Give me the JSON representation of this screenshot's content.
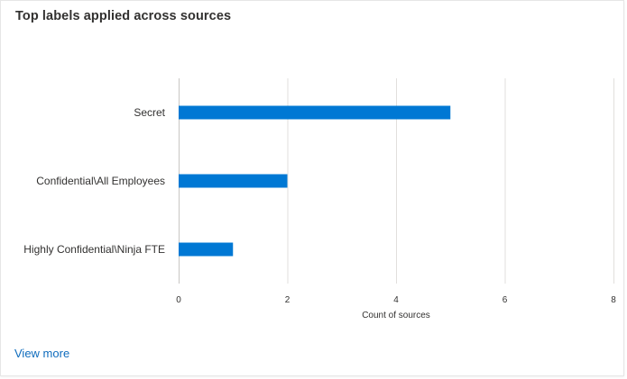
{
  "card": {
    "title": "Top labels applied across sources",
    "view_more_label": "View more"
  },
  "colors": {
    "bar": "#0078d4",
    "grid": "#e1dfdd",
    "axis": "#c8c6c4",
    "text": "#323130",
    "link": "#0f6cbd"
  },
  "chart_data": {
    "type": "bar",
    "orientation": "horizontal",
    "categories": [
      "Secret",
      "Confidential\\All Employees",
      "Highly Confidential\\Ninja FTE"
    ],
    "values": [
      5,
      2,
      1
    ],
    "xlabel": "Count of sources",
    "ylabel": "",
    "xlim": [
      0,
      8
    ],
    "xticks": [
      0,
      2,
      4,
      6,
      8
    ],
    "grid": true,
    "legend": "none"
  }
}
